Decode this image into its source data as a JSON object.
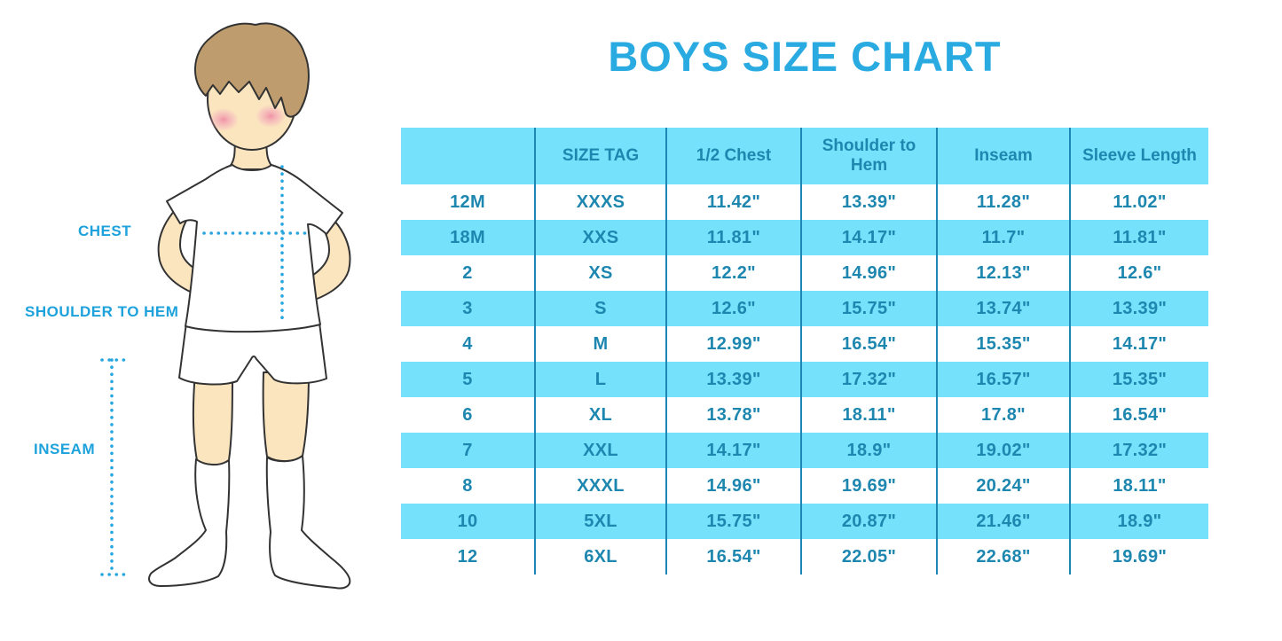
{
  "title": "BOYS SIZE CHART",
  "diagram": {
    "labels": {
      "chest": "CHEST",
      "shoulder_to_hem": "SHOULDER TO HEM",
      "inseam": "INSEAM"
    }
  },
  "colors": {
    "title_blue": "#29ABE2",
    "label_blue": "#1EA2DC",
    "dotted_line_blue": "#29A6DF",
    "row_band_cyan": "#75E1FA",
    "table_text_teal": "#1E87B0",
    "divider_teal": "#1C86B4",
    "skin": "#FBE5BF",
    "hair_brown": "#BE9C6E"
  },
  "chart_data": {
    "type": "table",
    "columns": [
      "",
      "SIZE TAG",
      "1/2 Chest",
      "Shoulder to Hem",
      "Inseam",
      "Sleeve Length"
    ],
    "rows": [
      [
        "12M",
        "XXXS",
        "11.42\"",
        "13.39\"",
        "11.28\"",
        "11.02\""
      ],
      [
        "18M",
        "XXS",
        "11.81\"",
        "14.17\"",
        "11.7\"",
        "11.81\""
      ],
      [
        "2",
        "XS",
        "12.2\"",
        "14.96\"",
        "12.13\"",
        "12.6\""
      ],
      [
        "3",
        "S",
        "12.6\"",
        "15.75\"",
        "13.74\"",
        "13.39\""
      ],
      [
        "4",
        "M",
        "12.99\"",
        "16.54\"",
        "15.35\"",
        "14.17\""
      ],
      [
        "5",
        "L",
        "13.39\"",
        "17.32\"",
        "16.57\"",
        "15.35\""
      ],
      [
        "6",
        "XL",
        "13.78\"",
        "18.11\"",
        "17.8\"",
        "16.54\""
      ],
      [
        "7",
        "XXL",
        "14.17\"",
        "18.9\"",
        "19.02\"",
        "17.32\""
      ],
      [
        "8",
        "XXXL",
        "14.96\"",
        "19.69\"",
        "20.24\"",
        "18.11\""
      ],
      [
        "10",
        "5XL",
        "15.75\"",
        "20.87\"",
        "21.46\"",
        "18.9\""
      ],
      [
        "12",
        "6XL",
        "16.54\"",
        "22.05\"",
        "22.68\"",
        "19.69\""
      ]
    ]
  }
}
